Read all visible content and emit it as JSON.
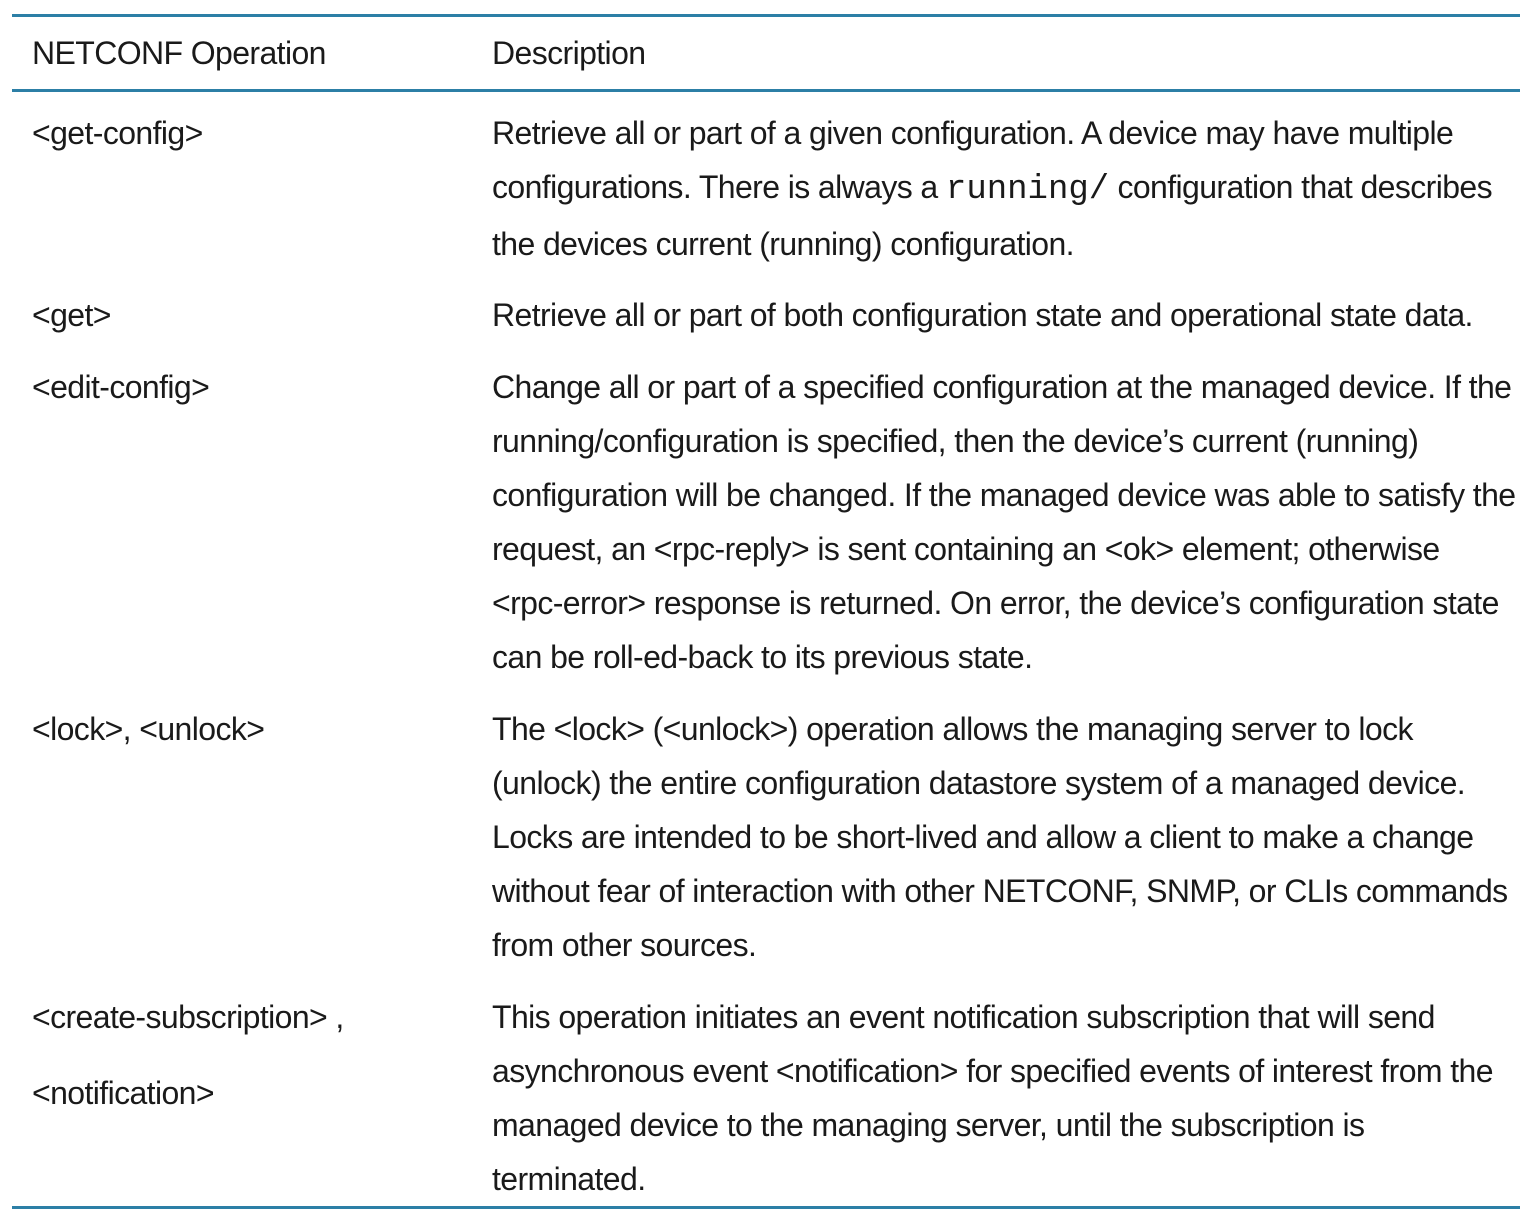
{
  "table": {
    "headers": {
      "operation": "NETCONF Operation",
      "description": "Description"
    },
    "rows": [
      {
        "operation": "<get-config>",
        "description_before": "Retrieve all or part of a given configuration. A device may have multiple configurations. There is always a ",
        "description_code": "running/",
        "description_after": " configuration that describes the devices current (running) configuration."
      },
      {
        "operation": "<get>",
        "description": "Retrieve all or part of both configuration state and operational state data."
      },
      {
        "operation": "<edit-config>",
        "description": "Change all or part of a specified configuration at the managed device. If the running/configuration is specified, then the device’s current (running) configuration will be changed. If the managed device was able to satisfy the request, an <rpc-reply> is sent containing an <ok> element; otherwise <rpc-error> response is returned. On error, the device’s configuration state can be roll-ed-back to its previous state."
      },
      {
        "operation": "<lock>, <unlock>",
        "description": "The <lock> (<unlock>) operation allows the managing server to lock (unlock) the entire configuration datastore system of a managed device. Locks are intended to be short-lived and allow a client to make a change without fear of interaction with other NETCONF, SNMP, or CLIs commands from other sources."
      },
      {
        "operation": "<create-subscription> ,",
        "operation_second": "<notification>",
        "description": "This operation initiates an event notification subscription that will send asynchronous event <notification> for specified events of interest from the managed device to the managing server, until the subscription is terminated."
      }
    ]
  },
  "colors": {
    "rule": "#2c7fa6",
    "text": "#1a1a1a"
  }
}
